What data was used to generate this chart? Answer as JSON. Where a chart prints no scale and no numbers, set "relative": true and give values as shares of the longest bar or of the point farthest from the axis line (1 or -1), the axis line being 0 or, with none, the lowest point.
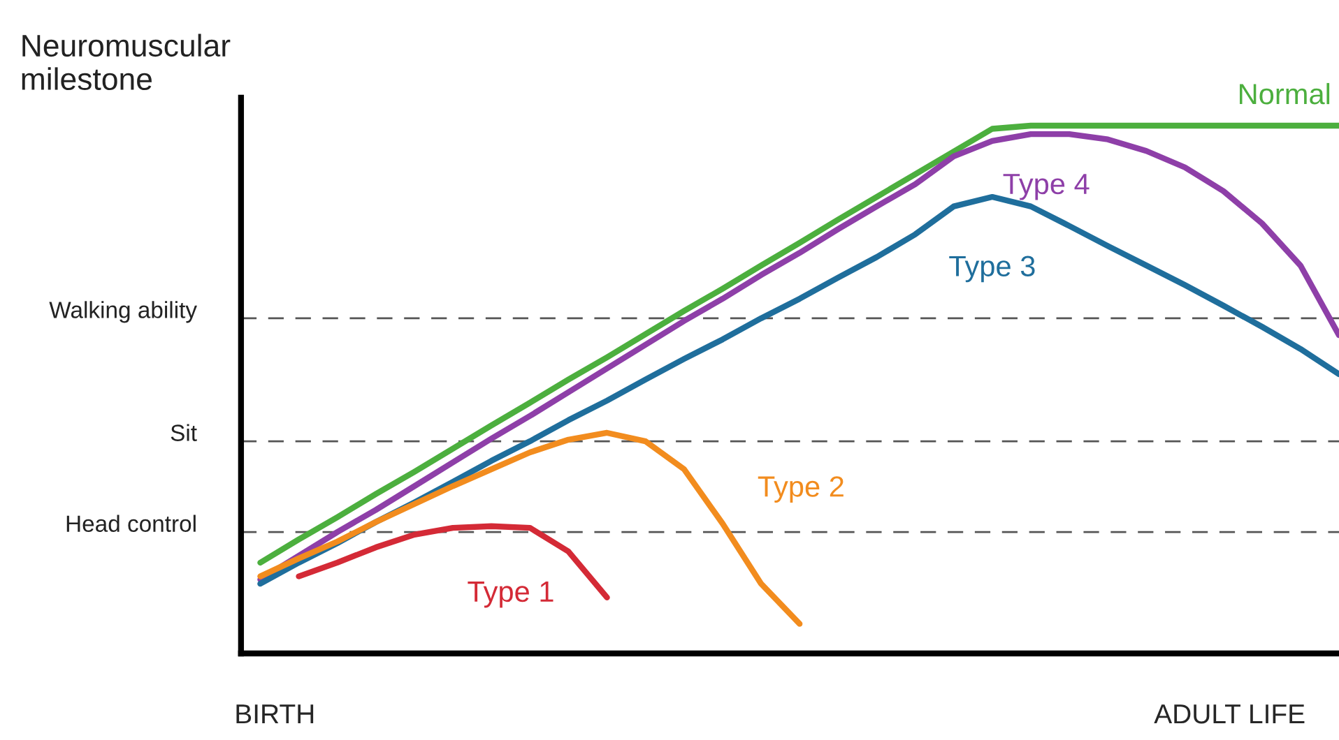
{
  "chart_data": {
    "type": "line",
    "relative": true,
    "ylabel": "Neuromuscular\nmilestone",
    "categories": [
      null,
      null,
      null,
      null,
      null,
      null,
      null,
      null,
      null,
      null,
      null,
      null,
      null,
      null,
      null,
      null,
      null,
      null,
      null,
      null,
      null,
      null,
      null,
      null,
      null,
      null,
      null,
      null,
      null
    ],
    "series": [
      {
        "name": "Normal",
        "color": "#4caf3e",
        "values": [
          0.172,
          0.216,
          0.258,
          0.302,
          0.344,
          0.388,
          0.432,
          0.475,
          0.519,
          0.561,
          0.605,
          0.649,
          0.691,
          0.735,
          0.778,
          0.822,
          0.865,
          0.908,
          0.951,
          0.994,
          1.0,
          1.0,
          1.0,
          1.0,
          1.0,
          1.0,
          1.0,
          1.0,
          1.0
        ]
      },
      {
        "name": "Type 4",
        "color": "#8e3fa8",
        "values": [
          0.14,
          0.185,
          0.23,
          0.272,
          0.317,
          0.362,
          0.407,
          0.45,
          0.495,
          0.54,
          0.585,
          0.63,
          0.672,
          0.717,
          0.759,
          0.804,
          0.847,
          0.889,
          0.942,
          0.971,
          0.984,
          0.984,
          0.974,
          0.952,
          0.921,
          0.876,
          0.815,
          0.735,
          0.603
        ]
      },
      {
        "name": "Type 3",
        "color": "#1f6e9c",
        "values": [
          0.132,
          0.172,
          0.209,
          0.249,
          0.286,
          0.325,
          0.365,
          0.402,
          0.442,
          0.479,
          0.519,
          0.558,
          0.595,
          0.635,
          0.672,
          0.712,
          0.751,
          0.794,
          0.847,
          0.865,
          0.847,
          0.81,
          0.772,
          0.735,
          0.698,
          0.659,
          0.619,
          0.577,
          0.529
        ]
      },
      {
        "name": "Type 2",
        "color": "#f28c1e",
        "values": [
          0.146,
          0.18,
          0.212,
          0.249,
          0.283,
          0.317,
          0.349,
          0.381,
          0.405,
          0.418,
          0.402,
          0.349,
          0.246,
          0.132,
          0.056,
          null,
          null,
          null,
          null,
          null,
          null,
          null,
          null,
          null,
          null,
          null,
          null,
          null,
          null
        ]
      },
      {
        "name": "Type 1",
        "color": "#d42a36",
        "values": [
          null,
          0.146,
          0.172,
          0.201,
          0.225,
          0.238,
          0.241,
          0.238,
          0.193,
          0.106,
          null,
          null,
          null,
          null,
          null,
          null,
          null,
          null,
          null,
          null,
          null,
          null,
          null,
          null,
          null,
          null,
          null,
          null,
          null
        ]
      }
    ],
    "ref_lines": [
      {
        "axis": "y",
        "value": 0.635,
        "label": "Walking ability",
        "color": "#555555",
        "line_style": "dashed"
      },
      {
        "axis": "y",
        "value": 0.402,
        "label": "Sit",
        "color": "#555555",
        "line_style": "dashed"
      },
      {
        "axis": "y",
        "value": 0.23,
        "label": "Head control",
        "color": "#555555",
        "line_style": "dashed"
      }
    ],
    "annotations": [
      "BIRTH",
      "ADULT LIFE"
    ],
    "line_style": "solid",
    "marker": "none",
    "legend": false
  }
}
